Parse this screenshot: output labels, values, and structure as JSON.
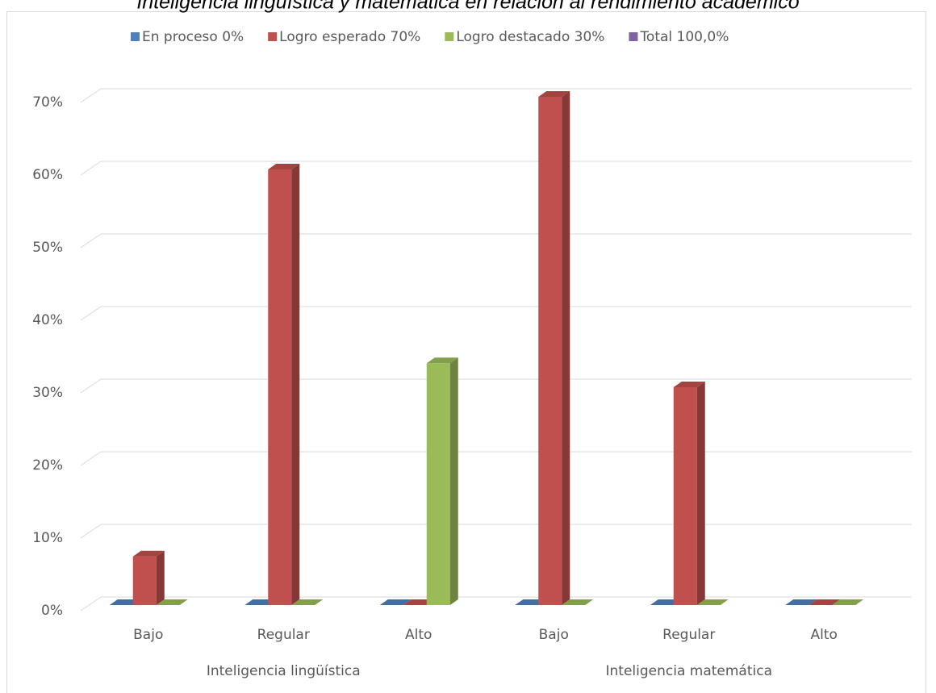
{
  "chart_data": {
    "type": "bar3d",
    "title": "Inteligencia lingüística y matemática en relación al rendimiento académico",
    "categories": [
      "Bajo",
      "Regular",
      "Alto",
      "Bajo",
      "Regular",
      "Alto"
    ],
    "category_groups": [
      "Inteligencia lingüística",
      "Inteligencia matemática"
    ],
    "series": [
      {
        "name": "En proceso 0%",
        "color": "#4f81bd",
        "values": [
          0,
          0,
          0,
          0,
          0,
          0
        ]
      },
      {
        "name": "Logro esperado 70%",
        "color": "#c0504d",
        "values": [
          6.7,
          60,
          0,
          70,
          30,
          0
        ]
      },
      {
        "name": "Logro destacado 30%",
        "color": "#9bbb59",
        "values": [
          0,
          0,
          33.3,
          0,
          0,
          0
        ]
      },
      {
        "name": "Total 100,0%",
        "color": "#8064a2",
        "values": [
          null,
          null,
          null,
          null,
          null,
          null
        ]
      }
    ],
    "ylim": [
      0,
      70
    ],
    "yticks": [
      {
        "value": 0,
        "label": "0%"
      },
      {
        "value": 10,
        "label": "10%"
      },
      {
        "value": 20,
        "label": "20%"
      },
      {
        "value": 30,
        "label": "30%"
      },
      {
        "value": 40,
        "label": "40%"
      },
      {
        "value": 50,
        "label": "50%"
      },
      {
        "value": 60,
        "label": "60%"
      },
      {
        "value": 70,
        "label": "70%"
      }
    ],
    "grid": true,
    "legend": "top"
  }
}
